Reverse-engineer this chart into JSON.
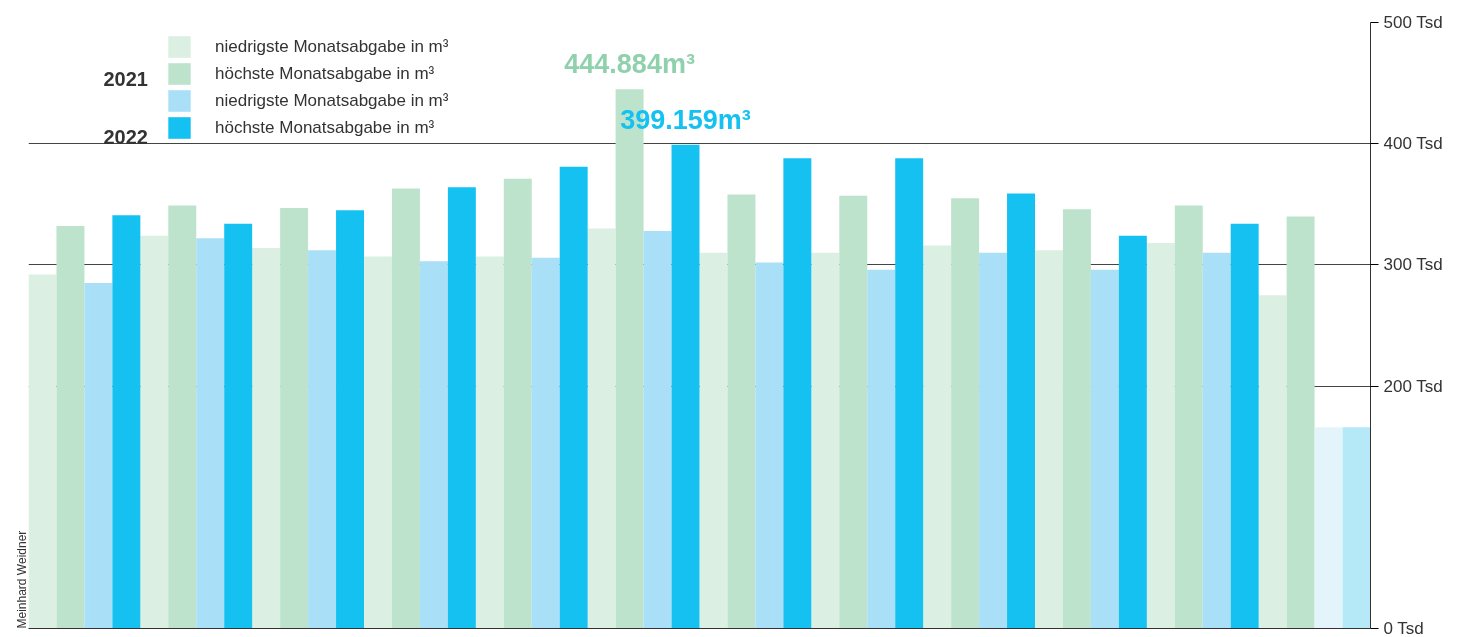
{
  "chart_data": {
    "type": "bar",
    "categories": [
      null,
      null,
      null,
      null,
      null,
      null,
      null,
      null,
      null,
      null,
      null,
      null
    ],
    "series": [
      {
        "name": "niedrigste Monatsabgabe in m³",
        "color": "#dcefe3",
        "values": [
          292,
          324,
          314,
          307,
          307,
          330,
          310,
          310,
          316,
          312,
          318,
          275
        ]
      },
      {
        "name": "höchste Monatsabgabe in m³",
        "color": "#bde3cd",
        "values": [
          332,
          349,
          347,
          363,
          371,
          444.884,
          358,
          357,
          355,
          346,
          349,
          340
        ],
        "value_labels": [
          null,
          null,
          null,
          null,
          null,
          "444.884m³",
          null,
          null,
          null,
          null,
          null,
          null
        ]
      },
      {
        "name": "niedrigste Monatsabgabe in m³",
        "colors": [
          "#aadff8",
          "#aadff8",
          "#aadff8",
          "#aadff8",
          "#aadff8",
          "#aadff8",
          "#aadff8",
          "#aadff8",
          "#aadff8",
          "#aadff8",
          "#aadff8",
          "#e3f5fb"
        ],
        "values": [
          285,
          322,
          312,
          303,
          306,
          328,
          302,
          296,
          310,
          296,
          310,
          166
        ]
      },
      {
        "name": "höchste Monatsabgabe in m³",
        "colors": [
          "#15c1f0",
          "#15c1f0",
          "#15c1f0",
          "#15c1f0",
          "#15c1f0",
          "#15c1f0",
          "#15c1f0",
          "#15c1f0",
          "#15c1f0",
          "#15c1f0",
          "#15c1f0",
          "#b6e9f7"
        ],
        "values": [
          341,
          334,
          345,
          364,
          381,
          399.159,
          388,
          388,
          359,
          324,
          334,
          166
        ],
        "value_labels": [
          null,
          null,
          null,
          null,
          null,
          "399.159m³",
          null,
          null,
          null,
          null,
          null,
          null
        ]
      }
    ],
    "ylim": [
      0,
      500
    ],
    "yticks": [
      {
        "value": 0,
        "label": "0 Tsd"
      },
      {
        "value": 200,
        "label": "200 Tsd"
      },
      {
        "value": 300,
        "label": "300 Tsd"
      },
      {
        "value": 400,
        "label": "400 Tsd"
      },
      {
        "value": 500,
        "label": "500 Tsd"
      }
    ],
    "grid": "y",
    "legend": "top left",
    "tick_labels": "y",
    "annotations": [
      "2021",
      "2022",
      "Meinhard Weidner"
    ]
  }
}
